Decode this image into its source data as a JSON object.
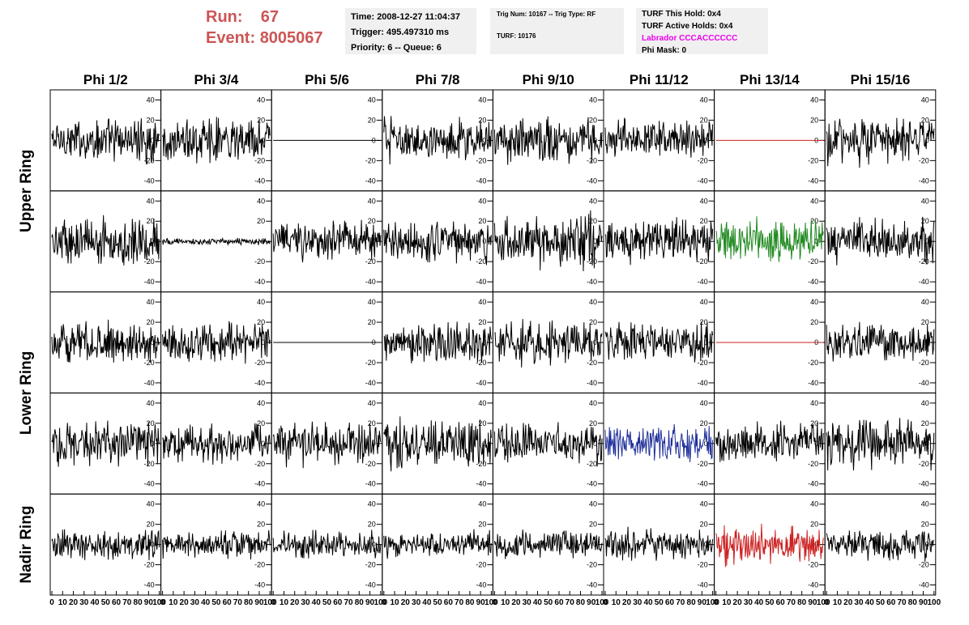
{
  "header": {
    "run_label": "Run:",
    "run_value": "67",
    "event_label": "Event:",
    "event_value": "8005067"
  },
  "info_box_1": {
    "time": "Time: 2008-12-27 11:04:37",
    "trigger": "Trigger: 495.497310 ms",
    "priority": "Priority: 6 -- Queue: 6"
  },
  "info_box_2": {
    "trig": "Trig Num: 10167 -- Trig Type: RF",
    "turf": "TURF: 10176"
  },
  "info_box_3": {
    "this_hold": "TURF This Hold: 0x4",
    "active_holds": "TURF Active Holds: 0x4",
    "labrador": "Labrador CCCACCCCCC",
    "phi_mask": "Phi Mask: 0"
  },
  "colors": {
    "run_text": "#cc5555",
    "labrador": "#ee00ee",
    "trace_default": "#000000",
    "trace_green": "#228b22",
    "trace_blue": "#1f2f9a",
    "trace_red": "#cc2222"
  },
  "chart_data": {
    "type": "line",
    "columns": [
      "Phi 1/2",
      "Phi 3/4",
      "Phi 5/6",
      "Phi 7/8",
      "Phi 9/10",
      "Phi 11/12",
      "Phi 13/14",
      "Phi 15/16"
    ],
    "row_groups": [
      "Upper Ring",
      "Lower Ring",
      "Nadir Ring"
    ],
    "ylim": [
      -50,
      50
    ],
    "yticks": [
      "40",
      "20",
      "0",
      "-20",
      "-40"
    ],
    "xlim": [
      0,
      100
    ],
    "xticks": [
      "0",
      "10",
      "20",
      "30",
      "40",
      "50",
      "60",
      "70",
      "80",
      "90",
      "100"
    ],
    "grid": false,
    "panels": [
      [
        {
          "amp": 20,
          "color": "#000000"
        },
        {
          "amp": 20,
          "color": "#000000"
        },
        {
          "amp": 0,
          "color": "#000000"
        },
        {
          "amp": 20,
          "color": "#000000"
        },
        {
          "amp": 20,
          "color": "#000000"
        },
        {
          "amp": 18,
          "color": "#000000"
        },
        {
          "amp": 0,
          "color": "#cc2222"
        },
        {
          "amp": 22,
          "color": "#000000"
        }
      ],
      [
        {
          "amp": 22,
          "color": "#000000"
        },
        {
          "amp": 3,
          "color": "#000000"
        },
        {
          "amp": 18,
          "color": "#000000"
        },
        {
          "amp": 20,
          "color": "#000000"
        },
        {
          "amp": 24,
          "color": "#000000"
        },
        {
          "amp": 20,
          "color": "#000000"
        },
        {
          "amp": 20,
          "color": "#228b22"
        },
        {
          "amp": 20,
          "color": "#000000"
        }
      ],
      [
        {
          "amp": 18,
          "color": "#000000"
        },
        {
          "amp": 18,
          "color": "#000000"
        },
        {
          "amp": 0,
          "color": "#000000"
        },
        {
          "amp": 18,
          "color": "#000000"
        },
        {
          "amp": 20,
          "color": "#000000"
        },
        {
          "amp": 18,
          "color": "#000000"
        },
        {
          "amp": 0,
          "color": "#cc2222"
        },
        {
          "amp": 18,
          "color": "#000000"
        }
      ],
      [
        {
          "amp": 20,
          "color": "#000000"
        },
        {
          "amp": 18,
          "color": "#000000"
        },
        {
          "amp": 20,
          "color": "#000000"
        },
        {
          "amp": 22,
          "color": "#000000"
        },
        {
          "amp": 18,
          "color": "#000000"
        },
        {
          "amp": 16,
          "color": "#1f2f9a"
        },
        {
          "amp": 18,
          "color": "#000000"
        },
        {
          "amp": 22,
          "color": "#000000"
        }
      ],
      [
        {
          "amp": 14,
          "color": "#000000"
        },
        {
          "amp": 12,
          "color": "#000000"
        },
        {
          "amp": 12,
          "color": "#000000"
        },
        {
          "amp": 12,
          "color": "#000000"
        },
        {
          "amp": 12,
          "color": "#000000"
        },
        {
          "amp": 14,
          "color": "#000000"
        },
        {
          "amp": 18,
          "color": "#cc2222"
        },
        {
          "amp": 14,
          "color": "#000000"
        }
      ]
    ]
  }
}
